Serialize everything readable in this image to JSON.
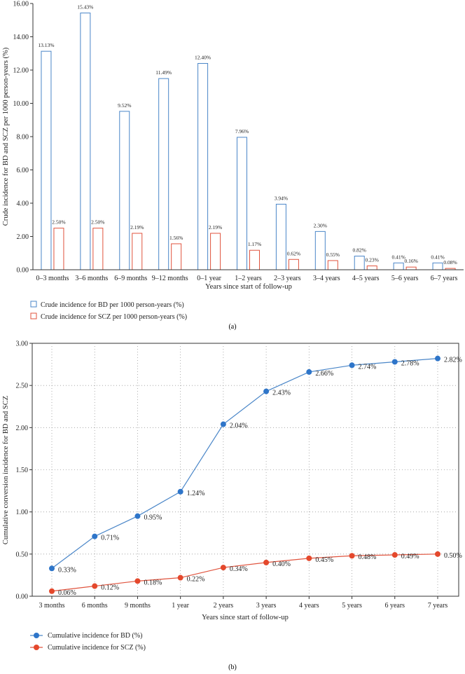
{
  "colors": {
    "bd": "#4a86c8",
    "scz": "#e0533d",
    "bd_point": "#2e75c9",
    "scz_point": "#e4482c",
    "axis": "#333333",
    "grid": "#9a9a9a"
  },
  "chart_data": [
    {
      "type": "bar",
      "categories": [
        "0–3 months",
        "3–6 months",
        "6–9 months",
        "9–12 months",
        "0–1 year",
        "1–2 years",
        "2–3 years",
        "3–4 years",
        "4–5 years",
        "5–6 years",
        "6–7 years"
      ],
      "series": [
        {
          "name": "Crude incidence for BD per 1000 person-years (%)",
          "values": [
            13.13,
            15.43,
            9.52,
            11.49,
            12.4,
            7.96,
            3.94,
            2.3,
            0.82,
            0.41,
            0.41
          ],
          "labels": [
            "13.13%",
            "15.43%",
            "9.52%",
            "11.49%",
            "12.40%",
            "7.96%",
            "3.94%",
            "2.30%",
            "0.82%",
            "0.41%",
            "0.41%"
          ]
        },
        {
          "name": "Crude incidence for SCZ per 1000 person-years (%)",
          "values": [
            2.5,
            2.5,
            2.19,
            1.56,
            2.19,
            1.17,
            0.62,
            0.55,
            0.23,
            0.16,
            0.08
          ],
          "labels": [
            "2.50%",
            "2.50%",
            "2.19%",
            "1.56%",
            "2.19%",
            "1.17%",
            "0.62%",
            "0.55%",
            "0.23%",
            "0.16%",
            "0.08%"
          ]
        }
      ],
      "yticks": [
        "0.00",
        "2.00",
        "4.00",
        "6.00",
        "8.00",
        "10.00",
        "12.00",
        "14.00",
        "16.00"
      ],
      "ylim": [
        0,
        16
      ],
      "xlabel": "Years since start of follow-up",
      "ylabel": "Crude incidence for BD and SCZ per 1000 person-years (%)",
      "legend": "bottom-left",
      "caption": "(a)"
    },
    {
      "type": "line",
      "categories": [
        "3 months",
        "6 months",
        "9 months",
        "1 year",
        "2 years",
        "3 years",
        "4 years",
        "5 years",
        "6 years",
        "7 years"
      ],
      "series": [
        {
          "name": "Cumulative incidence for BD (%)",
          "values": [
            0.33,
            0.71,
            0.95,
            1.24,
            2.04,
            2.43,
            2.66,
            2.74,
            2.78,
            2.82
          ],
          "labels": [
            "0.33%",
            "0.71%",
            "0.95%",
            "1.24%",
            "2.04%",
            "2.43%",
            "2.66%",
            "2.74%",
            "2.78%",
            "2.82%"
          ]
        },
        {
          "name": "Cumulative incidence for SCZ (%)",
          "values": [
            0.06,
            0.12,
            0.18,
            0.22,
            0.34,
            0.4,
            0.45,
            0.48,
            0.49,
            0.5
          ],
          "labels": [
            "0.06%",
            "0.12%",
            "0.18%",
            "0.22%",
            "0.34%",
            "0.40%",
            "0.45%",
            "0.48%",
            "0.49%",
            "0.50%"
          ]
        }
      ],
      "yticks": [
        "0.00",
        "0.50",
        "1.00",
        "1.50",
        "2.00",
        "2.50",
        "3.00"
      ],
      "ylim": [
        0,
        3
      ],
      "grid": true,
      "xlabel": "Years since start of follow-up",
      "ylabel": "Cumulative conversion incidence for BD and SCZ",
      "legend": "bottom-left",
      "caption": "(b)"
    }
  ]
}
